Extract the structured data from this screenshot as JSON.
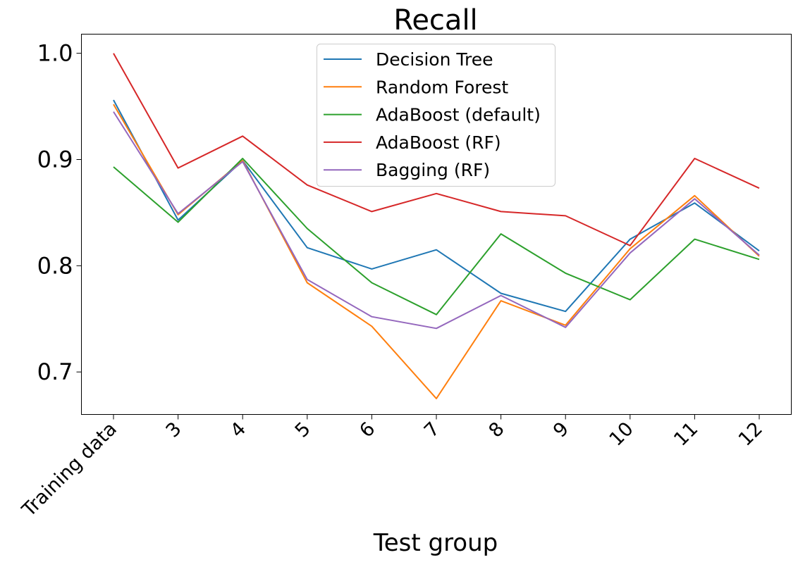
{
  "chart_data": {
    "type": "line",
    "title": "Recall",
    "xlabel": "Test group",
    "ylabel": "",
    "categories": [
      "Training data",
      "3",
      "4",
      "5",
      "6",
      "7",
      "8",
      "9",
      "10",
      "11",
      "12"
    ],
    "ylim": [
      0.66,
      1.018
    ],
    "yticks": [
      0.7,
      0.8,
      0.9,
      1.0
    ],
    "ytick_labels": [
      "0.7",
      "0.8",
      "0.9",
      "1.0"
    ],
    "grid": false,
    "legend_position": "upper center",
    "series": [
      {
        "name": "Decision Tree",
        "color": "#1f77b4",
        "values": [
          0.956,
          0.843,
          0.899,
          0.817,
          0.797,
          0.815,
          0.774,
          0.757,
          0.825,
          0.859,
          0.814
        ]
      },
      {
        "name": "Random Forest",
        "color": "#ff7f0e",
        "values": [
          0.952,
          0.848,
          0.899,
          0.784,
          0.743,
          0.675,
          0.767,
          0.744,
          0.816,
          0.866,
          0.809
        ]
      },
      {
        "name": "AdaBoost (default)",
        "color": "#2ca02c",
        "values": [
          0.893,
          0.841,
          0.901,
          0.835,
          0.784,
          0.754,
          0.83,
          0.793,
          0.768,
          0.825,
          0.806
        ]
      },
      {
        "name": "AdaBoost (RF)",
        "color": "#d62728",
        "values": [
          1.0,
          0.892,
          0.922,
          0.876,
          0.851,
          0.868,
          0.851,
          0.847,
          0.819,
          0.901,
          0.873
        ]
      },
      {
        "name": "Bagging (RF)",
        "color": "#9467bd",
        "values": [
          0.945,
          0.849,
          0.898,
          0.787,
          0.752,
          0.741,
          0.772,
          0.742,
          0.812,
          0.863,
          0.81
        ]
      }
    ]
  }
}
